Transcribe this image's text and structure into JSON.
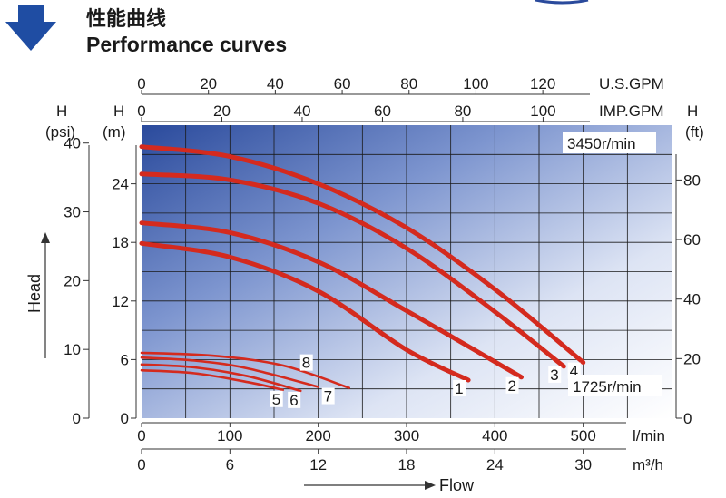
{
  "header": {
    "title_cn": "性能曲线",
    "title_en": "Performance curves"
  },
  "chart_data": {
    "type": "line",
    "speed_labels": [
      "3450r/min",
      "1725r/min"
    ],
    "axes": {
      "x_lmin": {
        "unit": "l/min",
        "ticks": [
          "0",
          "100",
          "200",
          "300",
          "400",
          "500"
        ],
        "range": [
          0,
          600
        ]
      },
      "x_m3h": {
        "unit": "m³/h",
        "ticks": [
          "0",
          "6",
          "12",
          "18",
          "24",
          "30"
        ],
        "range": [
          0,
          36
        ]
      },
      "x_usgpm": {
        "unit": "U.S.GPM",
        "ticks": [
          "0",
          "20",
          "40",
          "60",
          "80",
          "100",
          "120"
        ],
        "range": [
          0,
          158.5
        ]
      },
      "x_impgpm": {
        "unit": "IMP.GPM",
        "ticks": [
          "0",
          "20",
          "40",
          "60",
          "80",
          "100"
        ],
        "range": [
          0,
          132
        ]
      },
      "y_m": {
        "label": "H",
        "unit": "(m)",
        "ticks": [
          "0",
          "6",
          "12",
          "18",
          "24"
        ],
        "range": [
          0,
          30
        ]
      },
      "y_psi": {
        "label": "H",
        "unit": "(psi)",
        "ticks": [
          "0",
          "10",
          "20",
          "30",
          "40"
        ],
        "range": [
          0,
          42.6
        ]
      },
      "y_ft": {
        "label": "H",
        "unit": "(ft)",
        "ticks": [
          "0",
          "20",
          "40",
          "60",
          "80"
        ],
        "range": [
          0,
          98.4
        ]
      },
      "flow_label": "Flow",
      "head_label": "Head"
    },
    "series": [
      {
        "name": "1",
        "x": [
          0,
          100,
          200,
          300,
          370
        ],
        "y": [
          17.9,
          16.5,
          13,
          7,
          3.9
        ]
      },
      {
        "name": "2",
        "x": [
          0,
          100,
          200,
          300,
          430
        ],
        "y": [
          20,
          19,
          16,
          11,
          4.2
        ]
      },
      {
        "name": "3",
        "x": [
          0,
          100,
          200,
          300,
          400,
          478
        ],
        "y": [
          25,
          24.4,
          22,
          17.4,
          10.9,
          5.3
        ]
      },
      {
        "name": "4",
        "x": [
          0,
          100,
          200,
          300,
          400,
          500
        ],
        "y": [
          27.8,
          26.8,
          24,
          19.5,
          13.2,
          5.7
        ]
      },
      {
        "name": "5",
        "x": [
          0,
          60,
          120,
          160
        ],
        "y": [
          4.9,
          4.6,
          3.7,
          2.9
        ]
      },
      {
        "name": "6",
        "x": [
          0,
          60,
          120,
          180
        ],
        "y": [
          5.5,
          5.2,
          4.3,
          2.8
        ]
      },
      {
        "name": "7",
        "x": [
          0,
          60,
          120,
          200
        ],
        "y": [
          6.2,
          5.9,
          5.1,
          3.2
        ]
      },
      {
        "name": "8",
        "x": [
          0,
          80,
          160,
          235
        ],
        "y": [
          6.7,
          6.4,
          5.4,
          3.1
        ]
      }
    ]
  }
}
